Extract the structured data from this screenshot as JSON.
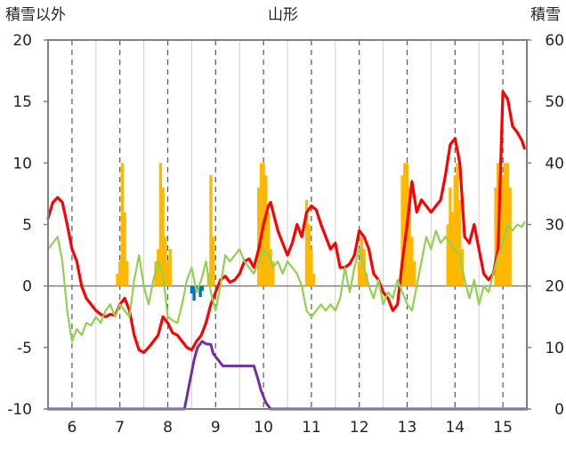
{
  "chart_data": {
    "type": "line",
    "title": "山形",
    "left_axis_label": "積雪以外",
    "right_axis_label": "積雪",
    "left_ylim": [
      -10,
      20
    ],
    "left_yticks": [
      -10,
      -5,
      0,
      5,
      10,
      15,
      20
    ],
    "right_ylim": [
      0,
      60
    ],
    "right_yticks": [
      0,
      10,
      20,
      30,
      40,
      50,
      60
    ],
    "xlim": [
      5.5,
      15.5
    ],
    "x_ticks": [
      {
        "value": 6,
        "label": "6"
      },
      {
        "value": 7,
        "label": "7"
      },
      {
        "value": 8,
        "label": "8"
      },
      {
        "value": 9,
        "label": "9"
      },
      {
        "value": 10,
        "label": "10"
      },
      {
        "value": 11,
        "label": "11"
      },
      {
        "value": 12,
        "label": "12"
      },
      {
        "value": 13,
        "label": "13"
      },
      {
        "value": 14,
        "label": "14"
      },
      {
        "value": 15,
        "label": "15"
      }
    ],
    "dashed_gridlines_x": [
      6,
      7,
      8,
      9,
      10,
      11,
      12,
      13,
      14,
      15
    ],
    "solid_gridlines_x": [
      6.5,
      7.5,
      8.5,
      9.5,
      10.5,
      11.5,
      12.5,
      13.5,
      14.5
    ],
    "colors": {
      "precipitation": "#FFB800",
      "snow_depth": "#7030A0",
      "temperature_red": "#FF0000",
      "temperature_green": "#92D050",
      "sunshine": "#0070C0",
      "axis": "#808080"
    },
    "series": [
      {
        "type": "bar",
        "axis": "left",
        "color": "#FFB800",
        "points": [
          [
            6.95,
            1
          ],
          [
            7.0,
            2
          ],
          [
            7.05,
            10
          ],
          [
            7.1,
            6
          ],
          [
            7.15,
            2
          ],
          [
            7.75,
            2
          ],
          [
            7.8,
            3
          ],
          [
            7.85,
            10
          ],
          [
            7.9,
            8
          ],
          [
            7.95,
            4
          ],
          [
            8.0,
            2
          ],
          [
            8.05,
            3
          ],
          [
            8.85,
            1
          ],
          [
            8.9,
            9
          ],
          [
            8.95,
            4
          ],
          [
            9.9,
            8
          ],
          [
            9.95,
            10
          ],
          [
            10.0,
            10
          ],
          [
            10.05,
            9
          ],
          [
            10.1,
            6
          ],
          [
            10.15,
            3
          ],
          [
            10.2,
            2
          ],
          [
            10.9,
            7
          ],
          [
            10.95,
            5
          ],
          [
            11.0,
            3
          ],
          [
            11.05,
            1
          ],
          [
            12.0,
            2
          ],
          [
            12.05,
            4
          ],
          [
            12.1,
            3
          ],
          [
            12.15,
            1
          ],
          [
            12.9,
            9
          ],
          [
            12.95,
            10
          ],
          [
            13.0,
            10
          ],
          [
            13.05,
            8
          ],
          [
            13.1,
            4
          ],
          [
            13.15,
            2
          ],
          [
            13.85,
            5
          ],
          [
            13.9,
            8
          ],
          [
            13.95,
            6
          ],
          [
            14.0,
            9
          ],
          [
            14.05,
            10
          ],
          [
            14.1,
            7
          ],
          [
            14.15,
            3
          ],
          [
            14.85,
            8
          ],
          [
            14.9,
            10
          ],
          [
            14.95,
            10
          ],
          [
            15.0,
            9
          ],
          [
            15.05,
            10
          ],
          [
            15.1,
            10
          ],
          [
            15.15,
            8
          ]
        ]
      },
      {
        "type": "bar",
        "axis": "left",
        "color": "#0070C0",
        "points": [
          [
            8.5,
            -0.6
          ],
          [
            8.55,
            -1.2
          ],
          [
            8.6,
            -0.5
          ],
          [
            8.68,
            -0.9
          ],
          [
            8.72,
            -0.4
          ]
        ]
      },
      {
        "type": "line",
        "axis": "right",
        "color": "#7030A0",
        "points": [
          [
            5.5,
            0
          ],
          [
            8.35,
            0
          ],
          [
            8.45,
            4
          ],
          [
            8.55,
            8
          ],
          [
            8.62,
            10
          ],
          [
            8.72,
            11
          ],
          [
            8.8,
            10.6
          ],
          [
            8.9,
            10.5
          ],
          [
            8.95,
            9
          ],
          [
            9.05,
            8
          ],
          [
            9.15,
            7
          ],
          [
            9.3,
            7
          ],
          [
            9.7,
            7
          ],
          [
            9.8,
            7
          ],
          [
            9.88,
            5
          ],
          [
            9.95,
            3
          ],
          [
            10.05,
            1
          ],
          [
            10.15,
            0
          ],
          [
            15.5,
            0
          ]
        ]
      },
      {
        "type": "line",
        "axis": "left",
        "color": "#FF0000",
        "points": [
          [
            5.5,
            5.5
          ],
          [
            5.6,
            6.8
          ],
          [
            5.7,
            7.2
          ],
          [
            5.8,
            6.8
          ],
          [
            5.9,
            5.0
          ],
          [
            6.0,
            3.0
          ],
          [
            6.1,
            2.0
          ],
          [
            6.2,
            0.0
          ],
          [
            6.3,
            -1.0
          ],
          [
            6.4,
            -1.5
          ],
          [
            6.5,
            -2.0
          ],
          [
            6.6,
            -2.3
          ],
          [
            6.7,
            -2.5
          ],
          [
            6.8,
            -2.3
          ],
          [
            6.9,
            -2.4
          ],
          [
            7.0,
            -1.5
          ],
          [
            7.1,
            -1.0
          ],
          [
            7.2,
            -2.0
          ],
          [
            7.3,
            -4.0
          ],
          [
            7.4,
            -5.2
          ],
          [
            7.5,
            -5.4
          ],
          [
            7.6,
            -5.0
          ],
          [
            7.7,
            -4.5
          ],
          [
            7.8,
            -4.0
          ],
          [
            7.9,
            -2.5
          ],
          [
            8.0,
            -3.0
          ],
          [
            8.1,
            -3.8
          ],
          [
            8.2,
            -4.0
          ],
          [
            8.3,
            -4.5
          ],
          [
            8.4,
            -5.0
          ],
          [
            8.5,
            -5.2
          ],
          [
            8.6,
            -4.5
          ],
          [
            8.7,
            -4.0
          ],
          [
            8.8,
            -3.0
          ],
          [
            8.9,
            -1.5
          ],
          [
            9.0,
            -0.5
          ],
          [
            9.1,
            0.5
          ],
          [
            9.2,
            0.8
          ],
          [
            9.3,
            0.3
          ],
          [
            9.4,
            0.5
          ],
          [
            9.5,
            1.0
          ],
          [
            9.6,
            2.0
          ],
          [
            9.7,
            2.2
          ],
          [
            9.8,
            1.5
          ],
          [
            9.9,
            3.0
          ],
          [
            10.0,
            5.0
          ],
          [
            10.1,
            6.5
          ],
          [
            10.15,
            6.8
          ],
          [
            10.2,
            6.0
          ],
          [
            10.3,
            4.5
          ],
          [
            10.4,
            3.5
          ],
          [
            10.5,
            2.5
          ],
          [
            10.6,
            3.5
          ],
          [
            10.7,
            5.0
          ],
          [
            10.8,
            4.0
          ],
          [
            10.9,
            6.0
          ],
          [
            11.0,
            6.5
          ],
          [
            11.1,
            6.2
          ],
          [
            11.2,
            5.0
          ],
          [
            11.3,
            4.0
          ],
          [
            11.4,
            3.0
          ],
          [
            11.5,
            3.5
          ],
          [
            11.6,
            1.5
          ],
          [
            11.7,
            1.5
          ],
          [
            11.8,
            1.8
          ],
          [
            11.9,
            2.5
          ],
          [
            12.0,
            4.5
          ],
          [
            12.1,
            4.0
          ],
          [
            12.2,
            3.0
          ],
          [
            12.3,
            1.0
          ],
          [
            12.4,
            0.5
          ],
          [
            12.5,
            -0.5
          ],
          [
            12.6,
            -1.0
          ],
          [
            12.7,
            -2.0
          ],
          [
            12.8,
            -1.5
          ],
          [
            12.9,
            2.0
          ],
          [
            13.0,
            5.0
          ],
          [
            13.1,
            8.5
          ],
          [
            13.2,
            6.0
          ],
          [
            13.3,
            7.0
          ],
          [
            13.4,
            6.5
          ],
          [
            13.5,
            6.0
          ],
          [
            13.6,
            6.5
          ],
          [
            13.7,
            7.0
          ],
          [
            13.8,
            9.0
          ],
          [
            13.9,
            11.5
          ],
          [
            14.0,
            12.0
          ],
          [
            14.1,
            10.0
          ],
          [
            14.2,
            4.0
          ],
          [
            14.3,
            3.5
          ],
          [
            14.4,
            5.0
          ],
          [
            14.5,
            3.0
          ],
          [
            14.6,
            1.0
          ],
          [
            14.7,
            0.5
          ],
          [
            14.8,
            1.0
          ],
          [
            14.9,
            3.0
          ],
          [
            15.0,
            15.8
          ],
          [
            15.1,
            15.2
          ],
          [
            15.2,
            13.0
          ],
          [
            15.3,
            12.5
          ],
          [
            15.4,
            11.8
          ],
          [
            15.45,
            11.2
          ]
        ]
      },
      {
        "type": "line",
        "axis": "left",
        "color": "#92D050",
        "points": [
          [
            5.5,
            3.0
          ],
          [
            5.6,
            3.5
          ],
          [
            5.7,
            4.0
          ],
          [
            5.8,
            2.0
          ],
          [
            5.9,
            -2.0
          ],
          [
            6.0,
            -4.5
          ],
          [
            6.1,
            -3.5
          ],
          [
            6.2,
            -4.0
          ],
          [
            6.3,
            -3.0
          ],
          [
            6.4,
            -3.2
          ],
          [
            6.5,
            -2.5
          ],
          [
            6.6,
            -3.0
          ],
          [
            6.7,
            -2.0
          ],
          [
            6.8,
            -1.5
          ],
          [
            6.9,
            -2.5
          ],
          [
            7.0,
            -1.5
          ],
          [
            7.1,
            -2.0
          ],
          [
            7.2,
            -2.5
          ],
          [
            7.3,
            0.5
          ],
          [
            7.4,
            2.5
          ],
          [
            7.5,
            0.0
          ],
          [
            7.6,
            -1.5
          ],
          [
            7.7,
            0.5
          ],
          [
            7.8,
            2.0
          ],
          [
            7.9,
            1.0
          ],
          [
            8.0,
            -2.5
          ],
          [
            8.1,
            -2.8
          ],
          [
            8.2,
            -3.0
          ],
          [
            8.3,
            -1.5
          ],
          [
            8.4,
            0.5
          ],
          [
            8.5,
            1.5
          ],
          [
            8.6,
            -0.5
          ],
          [
            8.7,
            0.5
          ],
          [
            8.8,
            2.0
          ],
          [
            8.9,
            -0.5
          ],
          [
            9.0,
            -2.0
          ],
          [
            9.1,
            0.0
          ],
          [
            9.2,
            2.5
          ],
          [
            9.3,
            2.0
          ],
          [
            9.4,
            2.5
          ],
          [
            9.5,
            3.0
          ],
          [
            9.6,
            2.0
          ],
          [
            9.7,
            1.5
          ],
          [
            9.8,
            1.0
          ],
          [
            9.9,
            2.0
          ],
          [
            10.0,
            3.0
          ],
          [
            10.1,
            2.5
          ],
          [
            10.2,
            1.5
          ],
          [
            10.3,
            2.0
          ],
          [
            10.4,
            1.0
          ],
          [
            10.5,
            2.0
          ],
          [
            10.6,
            1.5
          ],
          [
            10.7,
            1.0
          ],
          [
            10.8,
            0.0
          ],
          [
            10.9,
            -2.0
          ],
          [
            11.0,
            -2.5
          ],
          [
            11.1,
            -2.0
          ],
          [
            11.2,
            -1.5
          ],
          [
            11.3,
            -2.0
          ],
          [
            11.4,
            -1.5
          ],
          [
            11.5,
            -2.0
          ],
          [
            11.6,
            -1.0
          ],
          [
            11.7,
            1.5
          ],
          [
            11.8,
            -0.5
          ],
          [
            11.9,
            1.5
          ],
          [
            12.0,
            3.0
          ],
          [
            12.1,
            1.5
          ],
          [
            12.2,
            0.0
          ],
          [
            12.3,
            -1.0
          ],
          [
            12.4,
            0.5
          ],
          [
            12.5,
            -1.5
          ],
          [
            12.6,
            -0.5
          ],
          [
            12.7,
            -1.0
          ],
          [
            12.8,
            0.5
          ],
          [
            12.9,
            -0.5
          ],
          [
            13.0,
            -1.5
          ],
          [
            13.1,
            -2.0
          ],
          [
            13.2,
            0.0
          ],
          [
            13.3,
            2.0
          ],
          [
            13.4,
            4.0
          ],
          [
            13.5,
            3.0
          ],
          [
            13.6,
            4.5
          ],
          [
            13.7,
            3.5
          ],
          [
            13.8,
            4.0
          ],
          [
            13.9,
            3.5
          ],
          [
            14.0,
            3.0
          ],
          [
            14.1,
            2.5
          ],
          [
            14.2,
            0.5
          ],
          [
            14.3,
            -1.0
          ],
          [
            14.4,
            0.5
          ],
          [
            14.5,
            -1.5
          ],
          [
            14.6,
            0.0
          ],
          [
            14.7,
            -0.5
          ],
          [
            14.8,
            1.0
          ],
          [
            14.9,
            2.5
          ],
          [
            15.0,
            3.5
          ],
          [
            15.1,
            5.0
          ],
          [
            15.2,
            4.5
          ],
          [
            15.3,
            5.0
          ],
          [
            15.4,
            4.8
          ],
          [
            15.45,
            5.2
          ]
        ]
      }
    ]
  }
}
